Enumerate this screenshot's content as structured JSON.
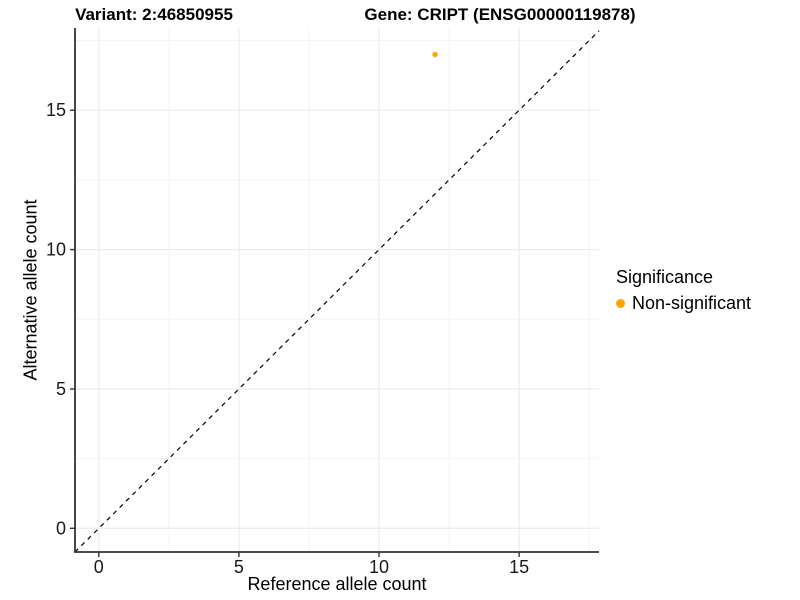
{
  "chart_data": {
    "type": "scatter",
    "titles": {
      "left": "Variant: 2:46850955",
      "right": "Gene: CRIPT (ENSG00000119878)"
    },
    "xlabel": "Reference allele count",
    "ylabel": "Alternative allele count",
    "xlim": [
      -0.85,
      17.85
    ],
    "ylim": [
      -0.85,
      17.95
    ],
    "x_ticks": [
      0,
      5,
      10,
      15
    ],
    "y_ticks": [
      0,
      5,
      10,
      15
    ],
    "x_minor_gridlines": [
      2.5,
      7.5,
      12.5,
      17.5
    ],
    "y_minor_gridlines": [
      2.5,
      7.5,
      12.5,
      17.5
    ],
    "grid": true,
    "series": [
      {
        "name": "Non-significant",
        "color": "#FFA500",
        "points": [
          {
            "x": 12,
            "y": 17
          }
        ]
      }
    ],
    "reference_line": {
      "type": "identity",
      "slope": 1,
      "intercept": 0,
      "style": "dashed",
      "color": "#000000"
    },
    "legend": {
      "position": "right",
      "title": "Significance",
      "items": [
        {
          "label": "Non-significant",
          "color": "#FFA500"
        }
      ]
    },
    "theme": {
      "axis_line_color": "#333333",
      "tick_label_color": "#1a1a1a",
      "major_grid_color": "#e8e8e8",
      "minor_grid_color": "#f4f4f4"
    }
  }
}
